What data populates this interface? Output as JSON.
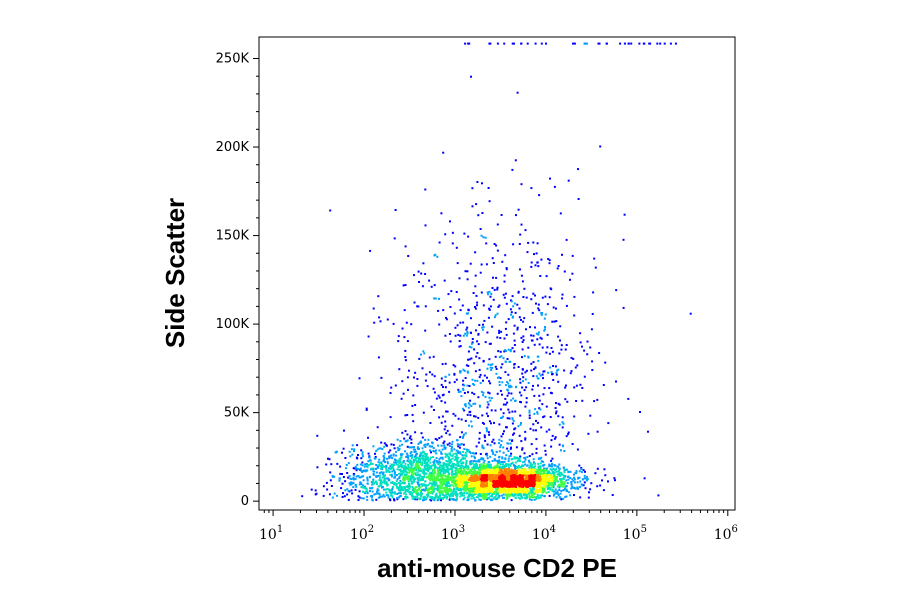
{
  "chart_data": {
    "type": "scatter",
    "subtype": "flow-cytometry-density-dot-plot",
    "title": "",
    "xlabel": "anti-mouse CD2 PE",
    "ylabel": "Side Scatter",
    "x_scale": "log",
    "xlim": [
      7,
      1200000
    ],
    "ylim": [
      -5000,
      262144
    ],
    "x_ticks": [
      {
        "base": "10",
        "exp": "1",
        "value": 10
      },
      {
        "base": "10",
        "exp": "2",
        "value": 100
      },
      {
        "base": "10",
        "exp": "3",
        "value": 1000
      },
      {
        "base": "10",
        "exp": "4",
        "value": 10000
      },
      {
        "base": "10",
        "exp": "5",
        "value": 100000
      },
      {
        "base": "10",
        "exp": "6",
        "value": 1000000
      }
    ],
    "y_ticks": [
      {
        "label": "0",
        "value": 0
      },
      {
        "label": "50K",
        "value": 50000
      },
      {
        "label": "100K",
        "value": 100000
      },
      {
        "label": "150K",
        "value": 150000
      },
      {
        "label": "200K",
        "value": 200000
      },
      {
        "label": "250K",
        "value": 250000
      }
    ],
    "grid": false,
    "legend": "none",
    "density_colormap": [
      "#0000ff",
      "#00a0ff",
      "#00e0c0",
      "#40ff40",
      "#ffff00",
      "#ff8000",
      "#ff0000"
    ],
    "populations": [
      {
        "center_x": 4000,
        "center_y": 12000,
        "spread_log_x": 0.32,
        "spread_y": 4500,
        "weight": 0.45
      },
      {
        "center_x": 500,
        "center_y": 15000,
        "spread_log_x": 0.45,
        "spread_y": 9000,
        "weight": 0.35
      },
      {
        "center_x": 3000,
        "center_y": 70000,
        "spread_log_x": 0.55,
        "spread_y": 45000,
        "weight": 0.2
      }
    ]
  }
}
